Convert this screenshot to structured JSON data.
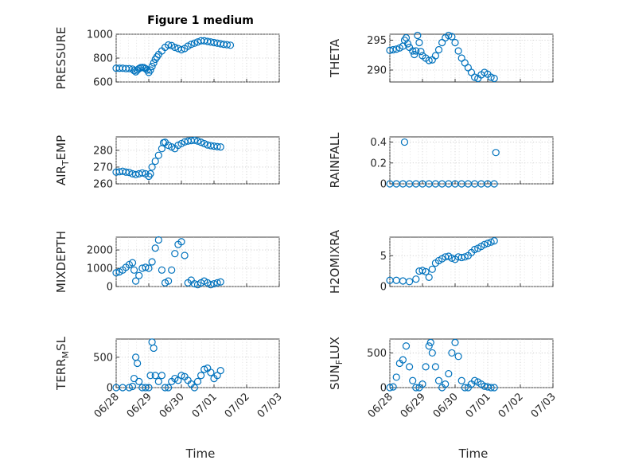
{
  "figure_title": "Figure 1 medium",
  "marker_color": "#0072BD",
  "x_ticks": [
    "06/28",
    "06/29",
    "06/30",
    "07/01",
    "07/02",
    "07/03"
  ],
  "x_label": "Time",
  "chart_data": [
    {
      "id": "pressure",
      "type": "scatter",
      "title": "Figure 1 medium",
      "ylabel": "PRESSURE",
      "ylim": [
        600,
        1000
      ],
      "yticks": [
        600,
        800,
        1000
      ],
      "points": [
        [
          0,
          715
        ],
        [
          0.1,
          715
        ],
        [
          0.2,
          715
        ],
        [
          0.3,
          712
        ],
        [
          0.4,
          712
        ],
        [
          0.5,
          708
        ],
        [
          0.55,
          695
        ],
        [
          0.6,
          685
        ],
        [
          0.65,
          700
        ],
        [
          0.7,
          712
        ],
        [
          0.75,
          720
        ],
        [
          0.8,
          722
        ],
        [
          0.85,
          720
        ],
        [
          0.9,
          712
        ],
        [
          0.95,
          700
        ],
        [
          1.0,
          680
        ],
        [
          1.05,
          700
        ],
        [
          1.1,
          730
        ],
        [
          1.15,
          760
        ],
        [
          1.2,
          790
        ],
        [
          1.25,
          810
        ],
        [
          1.3,
          830
        ],
        [
          1.4,
          860
        ],
        [
          1.5,
          890
        ],
        [
          1.6,
          910
        ],
        [
          1.7,
          905
        ],
        [
          1.8,
          890
        ],
        [
          1.9,
          880
        ],
        [
          2.0,
          870
        ],
        [
          2.1,
          880
        ],
        [
          2.2,
          900
        ],
        [
          2.3,
          915
        ],
        [
          2.4,
          925
        ],
        [
          2.5,
          935
        ],
        [
          2.6,
          945
        ],
        [
          2.7,
          945
        ],
        [
          2.8,
          940
        ],
        [
          2.9,
          935
        ],
        [
          3.0,
          930
        ],
        [
          3.1,
          925
        ],
        [
          3.2,
          920
        ],
        [
          3.3,
          915
        ],
        [
          3.4,
          912
        ],
        [
          3.5,
          908
        ]
      ]
    },
    {
      "id": "theta",
      "type": "scatter",
      "ylabel": "THETA",
      "ylim": [
        288,
        296
      ],
      "yticks": [
        290,
        295
      ],
      "points": [
        [
          0,
          293.3
        ],
        [
          0.1,
          293.4
        ],
        [
          0.2,
          293.5
        ],
        [
          0.3,
          293.7
        ],
        [
          0.4,
          294.0
        ],
        [
          0.45,
          295.0
        ],
        [
          0.5,
          295.4
        ],
        [
          0.55,
          294.4
        ],
        [
          0.6,
          293.8
        ],
        [
          0.7,
          293.2
        ],
        [
          0.75,
          292.6
        ],
        [
          0.8,
          293.2
        ],
        [
          0.85,
          295.8
        ],
        [
          0.9,
          294.6
        ],
        [
          0.95,
          293.1
        ],
        [
          1.0,
          292.4
        ],
        [
          1.1,
          292.0
        ],
        [
          1.2,
          291.6
        ],
        [
          1.3,
          291.7
        ],
        [
          1.4,
          292.4
        ],
        [
          1.5,
          293.4
        ],
        [
          1.6,
          294.6
        ],
        [
          1.7,
          295.4
        ],
        [
          1.8,
          295.8
        ],
        [
          1.9,
          295.6
        ],
        [
          2.0,
          294.6
        ],
        [
          2.1,
          293.2
        ],
        [
          2.2,
          292.0
        ],
        [
          2.3,
          291.2
        ],
        [
          2.4,
          290.4
        ],
        [
          2.5,
          289.6
        ],
        [
          2.6,
          288.8
        ],
        [
          2.7,
          288.6
        ],
        [
          2.8,
          289.2
        ],
        [
          2.9,
          289.6
        ],
        [
          3.0,
          289.3
        ],
        [
          3.1,
          288.8
        ],
        [
          3.2,
          288.6
        ]
      ]
    },
    {
      "id": "airtemp",
      "type": "scatter",
      "ylabel": "AIR_TEMP",
      "ylim": [
        260,
        288
      ],
      "yticks": [
        260,
        270,
        280
      ],
      "points": [
        [
          0,
          267
        ],
        [
          0.1,
          267.2
        ],
        [
          0.2,
          267.5
        ],
        [
          0.3,
          267
        ],
        [
          0.4,
          266.8
        ],
        [
          0.5,
          266
        ],
        [
          0.6,
          265.5
        ],
        [
          0.7,
          266
        ],
        [
          0.8,
          266.5
        ],
        [
          0.9,
          266
        ],
        [
          1.0,
          264.5
        ],
        [
          1.05,
          266
        ],
        [
          1.1,
          270
        ],
        [
          1.2,
          273.5
        ],
        [
          1.3,
          277
        ],
        [
          1.4,
          281
        ],
        [
          1.45,
          284.5
        ],
        [
          1.5,
          284.8
        ],
        [
          1.6,
          283
        ],
        [
          1.7,
          282
        ],
        [
          1.8,
          281
        ],
        [
          1.9,
          283
        ],
        [
          2.0,
          284
        ],
        [
          2.1,
          285
        ],
        [
          2.2,
          285.5
        ],
        [
          2.3,
          285.8
        ],
        [
          2.4,
          286
        ],
        [
          2.5,
          285.5
        ],
        [
          2.6,
          284.8
        ],
        [
          2.7,
          284
        ],
        [
          2.8,
          283.2
        ],
        [
          2.9,
          282.8
        ],
        [
          3.0,
          282.5
        ],
        [
          3.1,
          282.2
        ],
        [
          3.2,
          282
        ]
      ]
    },
    {
      "id": "rainfall",
      "type": "scatter",
      "ylabel": "RAINFALL",
      "ylim": [
        0,
        0.45
      ],
      "yticks": [
        0,
        0.2,
        0.4
      ],
      "points": [
        [
          0,
          0
        ],
        [
          0.2,
          0
        ],
        [
          0.4,
          0
        ],
        [
          0.45,
          0.4
        ],
        [
          0.6,
          0
        ],
        [
          0.8,
          0
        ],
        [
          1.0,
          0
        ],
        [
          1.2,
          0
        ],
        [
          1.4,
          0
        ],
        [
          1.6,
          0
        ],
        [
          1.8,
          0
        ],
        [
          2.0,
          0
        ],
        [
          2.2,
          0
        ],
        [
          2.4,
          0
        ],
        [
          2.6,
          0
        ],
        [
          2.8,
          0
        ],
        [
          3.0,
          0
        ],
        [
          3.2,
          0
        ],
        [
          3.25,
          0.3
        ]
      ]
    },
    {
      "id": "mixdepth",
      "type": "scatter",
      "ylabel": "MIXDEPTH",
      "ylim": [
        0,
        2700
      ],
      "yticks": [
        0,
        1000,
        2000
      ],
      "points": [
        [
          0,
          750
        ],
        [
          0.1,
          800
        ],
        [
          0.2,
          900
        ],
        [
          0.3,
          1050
        ],
        [
          0.4,
          1200
        ],
        [
          0.5,
          1300
        ],
        [
          0.55,
          900
        ],
        [
          0.6,
          300
        ],
        [
          0.7,
          600
        ],
        [
          0.8,
          1000
        ],
        [
          0.9,
          1050
        ],
        [
          1.0,
          1000
        ],
        [
          1.1,
          1350
        ],
        [
          1.2,
          2100
        ],
        [
          1.3,
          2550
        ],
        [
          1.4,
          900
        ],
        [
          1.5,
          200
        ],
        [
          1.6,
          300
        ],
        [
          1.7,
          900
        ],
        [
          1.8,
          1800
        ],
        [
          1.9,
          2300
        ],
        [
          2.0,
          2450
        ],
        [
          2.1,
          1700
        ],
        [
          2.2,
          200
        ],
        [
          2.3,
          350
        ],
        [
          2.4,
          150
        ],
        [
          2.5,
          100
        ],
        [
          2.6,
          200
        ],
        [
          2.7,
          300
        ],
        [
          2.8,
          200
        ],
        [
          2.9,
          100
        ],
        [
          3.0,
          150
        ],
        [
          3.1,
          200
        ],
        [
          3.2,
          250
        ]
      ]
    },
    {
      "id": "h2omixra",
      "type": "scatter",
      "ylabel": "H2OMIXRA",
      "ylim": [
        0,
        8
      ],
      "yticks": [
        0,
        5
      ],
      "points": [
        [
          0,
          1
        ],
        [
          0.2,
          1
        ],
        [
          0.4,
          0.9
        ],
        [
          0.6,
          0.8
        ],
        [
          0.8,
          1.2
        ],
        [
          0.9,
          2.5
        ],
        [
          1.0,
          2.6
        ],
        [
          1.1,
          2.4
        ],
        [
          1.2,
          1.5
        ],
        [
          1.3,
          2.8
        ],
        [
          1.4,
          3.8
        ],
        [
          1.5,
          4.2
        ],
        [
          1.6,
          4.5
        ],
        [
          1.7,
          4.8
        ],
        [
          1.8,
          4.9
        ],
        [
          1.9,
          4.6
        ],
        [
          2.0,
          4.4
        ],
        [
          2.1,
          4.8
        ],
        [
          2.2,
          4.7
        ],
        [
          2.3,
          4.8
        ],
        [
          2.4,
          5.0
        ],
        [
          2.5,
          5.5
        ],
        [
          2.6,
          6.0
        ],
        [
          2.7,
          6.2
        ],
        [
          2.8,
          6.5
        ],
        [
          2.9,
          6.8
        ],
        [
          3.0,
          7.0
        ],
        [
          3.1,
          7.2
        ],
        [
          3.2,
          7.4
        ]
      ]
    },
    {
      "id": "terrmsl",
      "type": "scatter",
      "ylabel": "TERR_MSL",
      "ylim": [
        0,
        800
      ],
      "yticks": [
        0,
        500
      ],
      "points": [
        [
          0,
          0
        ],
        [
          0.2,
          0
        ],
        [
          0.4,
          0
        ],
        [
          0.5,
          20
        ],
        [
          0.55,
          150
        ],
        [
          0.6,
          500
        ],
        [
          0.65,
          400
        ],
        [
          0.7,
          100
        ],
        [
          0.8,
          0
        ],
        [
          0.9,
          0
        ],
        [
          1.0,
          0
        ],
        [
          1.05,
          200
        ],
        [
          1.1,
          750
        ],
        [
          1.15,
          650
        ],
        [
          1.2,
          200
        ],
        [
          1.3,
          100
        ],
        [
          1.4,
          200
        ],
        [
          1.5,
          0
        ],
        [
          1.6,
          0
        ],
        [
          1.7,
          100
        ],
        [
          1.8,
          150
        ],
        [
          1.9,
          120
        ],
        [
          2.0,
          200
        ],
        [
          2.1,
          180
        ],
        [
          2.2,
          120
        ],
        [
          2.3,
          60
        ],
        [
          2.4,
          0
        ],
        [
          2.5,
          100
        ],
        [
          2.6,
          200
        ],
        [
          2.7,
          300
        ],
        [
          2.8,
          320
        ],
        [
          2.9,
          250
        ],
        [
          3.0,
          150
        ],
        [
          3.1,
          200
        ],
        [
          3.2,
          280
        ]
      ]
    },
    {
      "id": "sunflux",
      "type": "scatter",
      "ylabel": "SUN_FLUX",
      "ylim": [
        0,
        700
      ],
      "yticks": [
        0,
        500
      ],
      "points": [
        [
          0,
          0
        ],
        [
          0.1,
          10
        ],
        [
          0.2,
          150
        ],
        [
          0.3,
          350
        ],
        [
          0.4,
          400
        ],
        [
          0.5,
          600
        ],
        [
          0.6,
          300
        ],
        [
          0.7,
          100
        ],
        [
          0.8,
          0
        ],
        [
          0.9,
          0
        ],
        [
          1.0,
          50
        ],
        [
          1.1,
          300
        ],
        [
          1.2,
          600
        ],
        [
          1.25,
          650
        ],
        [
          1.3,
          500
        ],
        [
          1.4,
          300
        ],
        [
          1.5,
          100
        ],
        [
          1.6,
          0
        ],
        [
          1.7,
          50
        ],
        [
          1.8,
          200
        ],
        [
          1.9,
          500
        ],
        [
          2.0,
          650
        ],
        [
          2.1,
          450
        ],
        [
          2.2,
          100
        ],
        [
          2.3,
          0
        ],
        [
          2.4,
          0
        ],
        [
          2.5,
          50
        ],
        [
          2.6,
          100
        ],
        [
          2.7,
          80
        ],
        [
          2.8,
          50
        ],
        [
          2.9,
          20
        ],
        [
          3.0,
          10
        ],
        [
          3.1,
          0
        ],
        [
          3.2,
          0
        ]
      ]
    }
  ]
}
